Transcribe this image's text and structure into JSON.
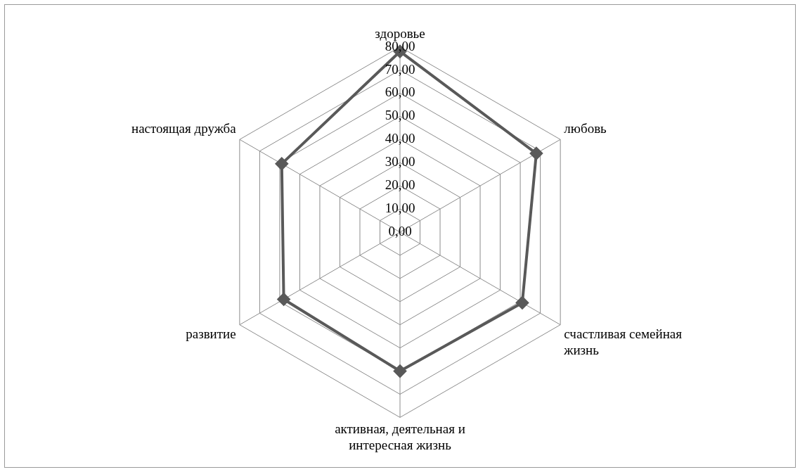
{
  "chart_data": {
    "type": "radar",
    "categories": [
      "здоровье",
      "любовь",
      "счастливая семейная жизнь",
      "активная, деятельная и интересная жизнь",
      "развитие",
      "настоящая дружба"
    ],
    "series": [
      {
        "color": "#595959",
        "values": [
          78,
          68,
          61,
          60,
          58,
          59
        ]
      }
    ],
    "ylim": [
      0,
      80
    ],
    "yticks": [
      {
        "value": 0,
        "label": "0,00"
      },
      {
        "value": 10,
        "label": "10,00"
      },
      {
        "value": 20,
        "label": "20,00"
      },
      {
        "value": 30,
        "label": "30,00"
      },
      {
        "value": 40,
        "label": "40,00"
      },
      {
        "value": 50,
        "label": "50,00"
      },
      {
        "value": 60,
        "label": "60,00"
      },
      {
        "value": 70,
        "label": "70,00"
      },
      {
        "value": 80,
        "label": "80,00"
      }
    ],
    "grid": true,
    "legend": false,
    "marker": "diamond",
    "line_style": "solid"
  }
}
